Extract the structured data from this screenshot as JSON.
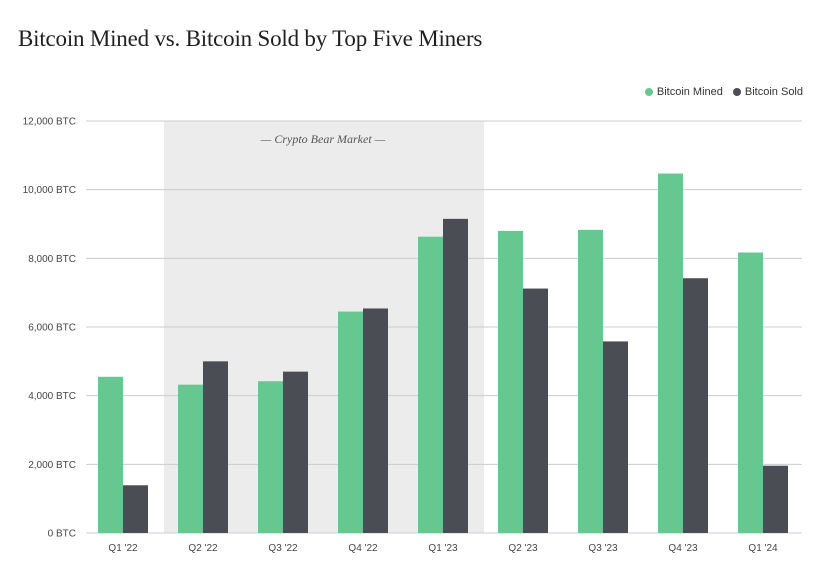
{
  "colors": {
    "mined": "#66c791",
    "sold": "#4a4d53",
    "shade": "#ececec",
    "grid": "#cccccc"
  },
  "chart_data": {
    "type": "bar",
    "title": "Bitcoin Mined vs. Bitcoin Sold by Top Five Miners",
    "categories": [
      "Q1 '22",
      "Q2 '22",
      "Q3 '22",
      "Q4 '22",
      "Q1 '23",
      "Q2 '23",
      "Q3 '23",
      "Q4 '23",
      "Q1 '24"
    ],
    "series": [
      {
        "name": "Bitcoin Mined",
        "color": "#66c791",
        "values": [
          4550,
          4320,
          4420,
          6450,
          8630,
          8800,
          8830,
          10470,
          8170
        ]
      },
      {
        "name": "Bitcoin Sold",
        "color": "#4a4d53",
        "values": [
          1390,
          5000,
          4700,
          6540,
          9150,
          7120,
          5580,
          7420,
          1960
        ]
      }
    ],
    "ylim": [
      0,
      12000
    ],
    "yticks": [
      "0 BTC",
      "2,000 BTC",
      "4,000 BTC",
      "6,000 BTC",
      "8,000 BTC",
      "10,000 BTC",
      "12,000 BTC"
    ],
    "ytick_values": [
      0,
      2000,
      4000,
      6000,
      8000,
      10000,
      12000
    ],
    "grid": true,
    "legend_position": "top-right",
    "annotation": {
      "text": "— Crypto Bear Market —",
      "from_category": "Q2 '22",
      "to_category": "Q1 '23"
    }
  }
}
